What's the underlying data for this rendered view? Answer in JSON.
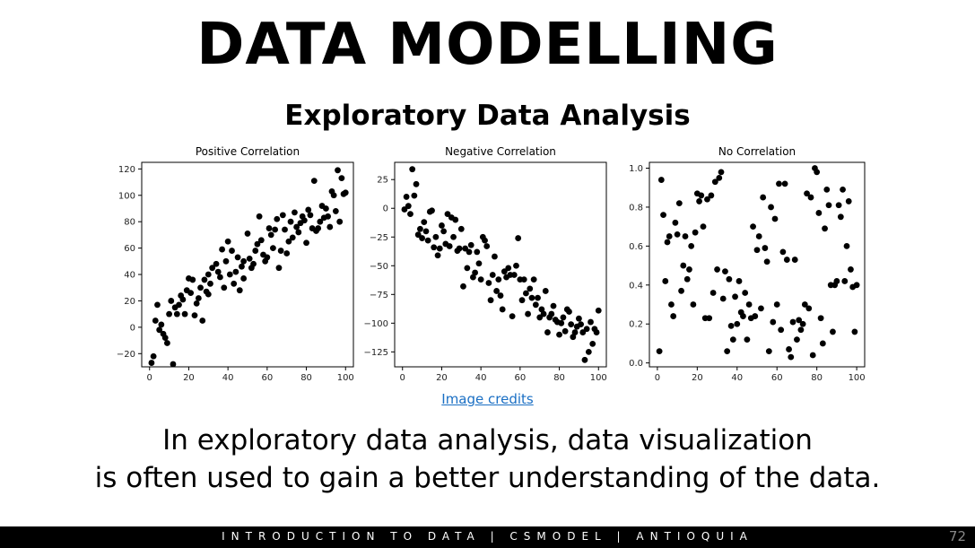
{
  "slide": {
    "title": "DATA MODELLING",
    "subtitle": "Exploratory Data Analysis",
    "credit_link": "Image credits",
    "caption_line1": "In exploratory data analysis, data visualization",
    "caption_line2": "is often used to gain a better understanding of the data.",
    "footer": "INTRODUCTION TO DATA | CSMODEL | ANTIOQUIA",
    "page_number": "72"
  },
  "chart_data": [
    {
      "type": "scatter",
      "title": "Positive Correlation",
      "xlim": [
        -4,
        104
      ],
      "ylim": [
        -30,
        125
      ],
      "xticks": [
        0,
        20,
        40,
        60,
        80,
        100
      ],
      "yticks": [
        -20,
        0,
        20,
        40,
        60,
        80,
        100,
        120
      ],
      "x": [
        1,
        2,
        4,
        5,
        6,
        8,
        9,
        10,
        11,
        12,
        14,
        15,
        16,
        17,
        18,
        19,
        20,
        21,
        22,
        23,
        24,
        25,
        26,
        27,
        28,
        29,
        30,
        31,
        32,
        34,
        35,
        36,
        37,
        38,
        39,
        40,
        41,
        42,
        43,
        44,
        45,
        46,
        47,
        48,
        50,
        51,
        52,
        53,
        54,
        55,
        56,
        57,
        58,
        59,
        60,
        61,
        62,
        63,
        64,
        65,
        66,
        67,
        68,
        69,
        70,
        71,
        72,
        73,
        74,
        75,
        76,
        77,
        78,
        79,
        80,
        81,
        82,
        83,
        84,
        85,
        86,
        87,
        88,
        89,
        90,
        91,
        92,
        93,
        94,
        95,
        96,
        97,
        98,
        99,
        100,
        3,
        7,
        13,
        30,
        48
      ],
      "y": [
        -27,
        -22,
        17,
        -2,
        2,
        -8,
        -12,
        10,
        20,
        -28,
        10,
        17,
        24,
        21,
        10,
        28,
        37,
        26,
        36,
        9,
        18,
        22,
        30,
        5,
        36,
        27,
        40,
        33,
        45,
        48,
        42,
        38,
        59,
        30,
        50,
        65,
        40,
        58,
        33,
        42,
        53,
        28,
        46,
        37,
        71,
        52,
        45,
        48,
        58,
        63,
        84,
        66,
        55,
        50,
        53,
        75,
        70,
        60,
        74,
        82,
        45,
        58,
        85,
        74,
        56,
        65,
        80,
        68,
        87,
        76,
        72,
        79,
        84,
        81,
        64,
        89,
        85,
        75,
        111,
        73,
        75,
        80,
        92,
        83,
        90,
        84,
        76,
        103,
        100,
        88,
        119,
        80,
        113,
        101,
        102,
        5,
        -5,
        15,
        25,
        50
      ]
    },
    {
      "type": "scatter",
      "title": "Negative Correlation",
      "xlim": [
        -4,
        104
      ],
      "ylim": [
        -138,
        40
      ],
      "xticks": [
        0,
        20,
        40,
        60,
        80,
        100
      ],
      "yticks": [
        25,
        0,
        -25,
        -50,
        -75,
        -100,
        -125
      ],
      "x": [
        1,
        2,
        3,
        4,
        5,
        6,
        7,
        8,
        9,
        10,
        11,
        12,
        13,
        14,
        15,
        16,
        17,
        18,
        19,
        20,
        21,
        22,
        23,
        24,
        25,
        26,
        27,
        28,
        29,
        30,
        31,
        32,
        33,
        34,
        35,
        36,
        37,
        38,
        39,
        40,
        41,
        42,
        43,
        44,
        45,
        46,
        47,
        48,
        49,
        50,
        51,
        52,
        53,
        54,
        55,
        56,
        57,
        58,
        59,
        60,
        61,
        62,
        63,
        64,
        65,
        66,
        67,
        68,
        69,
        70,
        71,
        72,
        73,
        74,
        75,
        76,
        77,
        78,
        79,
        80,
        81,
        82,
        83,
        84,
        85,
        86,
        87,
        88,
        89,
        90,
        91,
        92,
        93,
        94,
        95,
        96,
        97,
        98,
        99,
        100
      ],
      "y": [
        -1,
        10,
        2,
        -5,
        34,
        11,
        21,
        -23,
        -18,
        -26,
        -12,
        -20,
        -28,
        -3,
        -2,
        -34,
        -25,
        -41,
        -35,
        -15,
        -20,
        -31,
        -5,
        -33,
        -8,
        -25,
        -10,
        -37,
        -35,
        -18,
        -68,
        -35,
        -52,
        -38,
        -32,
        -60,
        -56,
        -38,
        -48,
        -62,
        -25,
        -28,
        -33,
        -65,
        -80,
        -58,
        -42,
        -72,
        -62,
        -76,
        -88,
        -55,
        -60,
        -52,
        -58,
        -94,
        -58,
        -50,
        -26,
        -62,
        -80,
        -62,
        -74,
        -92,
        -70,
        -78,
        -62,
        -84,
        -78,
        -95,
        -88,
        -92,
        -72,
        -108,
        -95,
        -92,
        -85,
        -97,
        -99,
        -110,
        -100,
        -95,
        -107,
        -88,
        -90,
        -101,
        -112,
        -108,
        -103,
        -96,
        -101,
        -108,
        -132,
        -105,
        -125,
        -99,
        -118,
        -105,
        -108,
        -89
      ]
    },
    {
      "type": "scatter",
      "title": "No Correlation",
      "xlim": [
        -4,
        104
      ],
      "ylim": [
        -0.02,
        1.03
      ],
      "xticks": [
        0,
        20,
        40,
        60,
        80,
        100
      ],
      "yticks": [
        0.0,
        0.2,
        0.4,
        0.6,
        0.8,
        1.0
      ],
      "x": [
        1,
        2,
        3,
        4,
        5,
        6,
        7,
        8,
        9,
        10,
        11,
        12,
        13,
        14,
        15,
        16,
        17,
        18,
        19,
        20,
        21,
        22,
        23,
        24,
        25,
        26,
        27,
        28,
        29,
        30,
        31,
        32,
        33,
        34,
        35,
        36,
        37,
        38,
        39,
        40,
        41,
        42,
        43,
        44,
        45,
        46,
        47,
        48,
        49,
        50,
        51,
        52,
        53,
        54,
        55,
        56,
        57,
        58,
        59,
        60,
        61,
        62,
        63,
        64,
        65,
        66,
        67,
        68,
        69,
        70,
        71,
        72,
        73,
        74,
        75,
        76,
        77,
        78,
        79,
        80,
        81,
        82,
        83,
        84,
        85,
        86,
        87,
        88,
        89,
        90,
        91,
        92,
        93,
        94,
        95,
        96,
        97,
        98,
        99,
        100
      ],
      "y": [
        0.06,
        0.94,
        0.76,
        0.42,
        0.62,
        0.65,
        0.3,
        0.24,
        0.72,
        0.66,
        0.82,
        0.37,
        0.5,
        0.65,
        0.43,
        0.48,
        0.6,
        0.3,
        0.67,
        0.87,
        0.83,
        0.86,
        0.7,
        0.23,
        0.84,
        0.23,
        0.86,
        0.36,
        0.93,
        0.48,
        0.95,
        0.98,
        0.33,
        0.47,
        0.06,
        0.43,
        0.19,
        0.12,
        0.34,
        0.2,
        0.42,
        0.26,
        0.24,
        0.36,
        0.12,
        0.3,
        0.23,
        0.7,
        0.24,
        0.58,
        0.65,
        0.28,
        0.85,
        0.59,
        0.52,
        0.06,
        0.8,
        0.21,
        0.74,
        0.3,
        0.92,
        0.17,
        0.57,
        0.92,
        0.53,
        0.07,
        0.03,
        0.21,
        0.53,
        0.12,
        0.22,
        0.17,
        0.2,
        0.3,
        0.87,
        0.28,
        0.85,
        0.04,
        1.0,
        0.98,
        0.77,
        0.23,
        0.1,
        0.69,
        0.89,
        0.81,
        0.4,
        0.16,
        0.4,
        0.42,
        0.81,
        0.75,
        0.89,
        0.42,
        0.6,
        0.83,
        0.48,
        0.39,
        0.16,
        0.4
      ]
    }
  ]
}
